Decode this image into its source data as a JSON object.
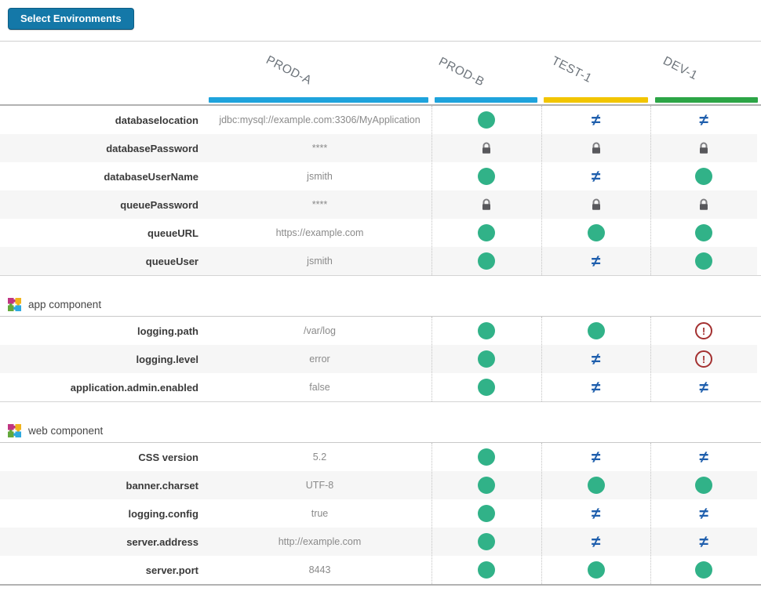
{
  "button": {
    "label": "Select Environments"
  },
  "colors": {
    "accent": "#1478a8",
    "equal": "#31b288",
    "not-equal": "#1f5fad",
    "locked": "#58585c",
    "warning": "#a33030"
  },
  "environments": [
    {
      "name": "PROD-A",
      "color": "#1ea3dc"
    },
    {
      "name": "PROD-B",
      "color": "#1ea3dc"
    },
    {
      "name": "TEST-1",
      "color": "#f2c500"
    },
    {
      "name": "DEV-1",
      "color": "#2ca546"
    }
  ],
  "table": {
    "groups": [
      {
        "section": "",
        "rows": [
          {
            "label": "databaselocation",
            "value": "jdbc:mysql://example.com:3306/MyApplication",
            "statuses": [
              "equal",
              "not-equal",
              "not-equal"
            ]
          },
          {
            "label": "databasePassword",
            "value": "****",
            "statuses": [
              "locked",
              "locked",
              "locked"
            ]
          },
          {
            "label": "databaseUserName",
            "value": "jsmith",
            "statuses": [
              "equal",
              "not-equal",
              "equal"
            ]
          },
          {
            "label": "queuePassword",
            "value": "****",
            "statuses": [
              "locked",
              "locked",
              "locked"
            ]
          },
          {
            "label": "queueURL",
            "value": "https://example.com",
            "statuses": [
              "equal",
              "equal",
              "equal"
            ]
          },
          {
            "label": "queueUser",
            "value": "jsmith",
            "statuses": [
              "equal",
              "not-equal",
              "equal"
            ]
          }
        ]
      },
      {
        "section": "app component",
        "rows": [
          {
            "label": "logging.path",
            "value": "/var/log",
            "statuses": [
              "equal",
              "equal",
              "warning"
            ]
          },
          {
            "label": "logging.level",
            "value": "error",
            "statuses": [
              "equal",
              "not-equal",
              "warning"
            ]
          },
          {
            "label": "application.admin.enabled",
            "value": "false",
            "statuses": [
              "equal",
              "not-equal",
              "not-equal"
            ]
          }
        ]
      },
      {
        "section": "web component",
        "rows": [
          {
            "label": "CSS version",
            "value": "5.2",
            "statuses": [
              "equal",
              "not-equal",
              "not-equal"
            ]
          },
          {
            "label": "banner.charset",
            "value": "UTF-8",
            "statuses": [
              "equal",
              "equal",
              "equal"
            ]
          },
          {
            "label": "logging.config",
            "value": "true",
            "statuses": [
              "equal",
              "not-equal",
              "not-equal"
            ]
          },
          {
            "label": "server.address",
            "value": "http://example.com",
            "statuses": [
              "equal",
              "not-equal",
              "not-equal"
            ]
          },
          {
            "label": "server.port",
            "value": "8443",
            "statuses": [
              "equal",
              "equal",
              "equal"
            ]
          }
        ]
      }
    ]
  }
}
